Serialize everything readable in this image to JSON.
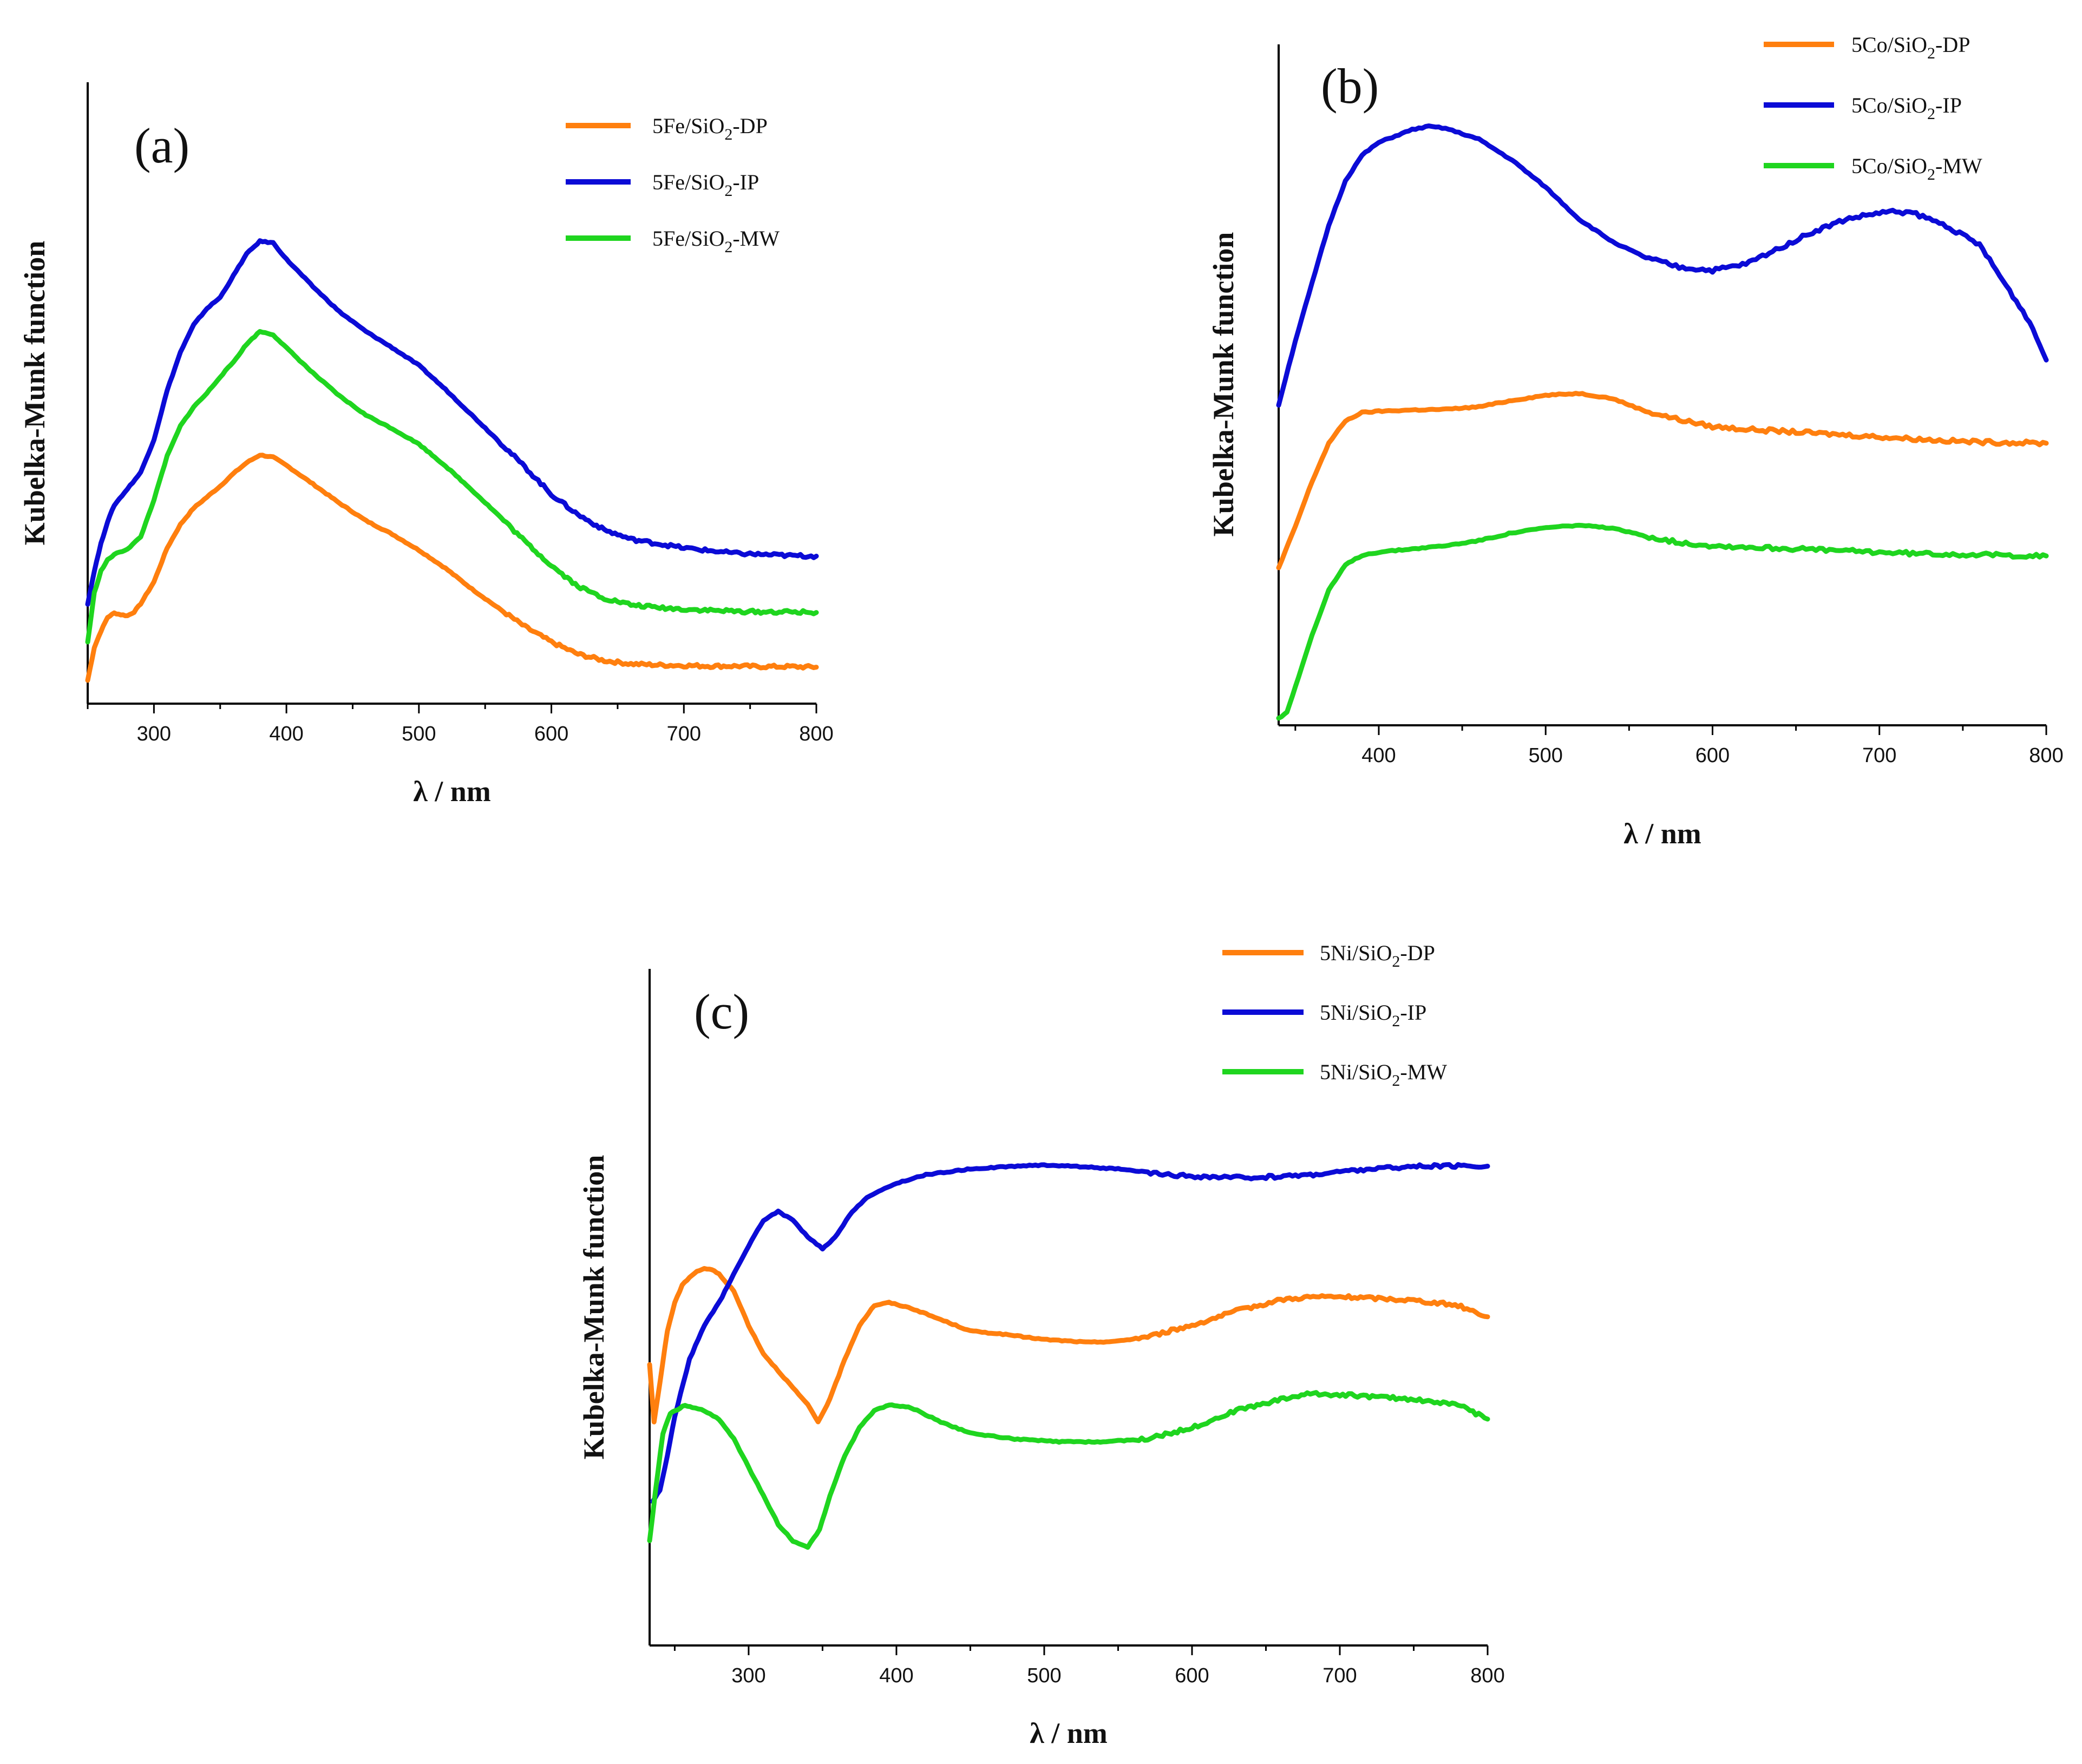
{
  "colors": {
    "DP": "#ff7f0e",
    "IP": "#0b0bd6",
    "MW": "#1fd51f"
  },
  "chart_data": [
    {
      "id": "a",
      "type": "line",
      "panel_label": "(a)",
      "title": "",
      "xlabel": "λ / nm",
      "ylabel": "Kubelka-Munk function",
      "xlim": [
        250,
        800
      ],
      "ylim": [
        0,
        1
      ],
      "xticks": [
        300,
        400,
        500,
        600,
        700,
        800
      ],
      "legend_position": "top-right",
      "series": [
        {
          "key": "DP",
          "name_base": "5Fe/SiO",
          "name_sub": "2",
          "name_suffix": "-DP",
          "x": [
            250,
            255,
            260,
            265,
            270,
            275,
            280,
            285,
            290,
            300,
            310,
            320,
            330,
            340,
            350,
            360,
            370,
            380,
            390,
            400,
            420,
            440,
            460,
            480,
            500,
            520,
            540,
            560,
            580,
            600,
            620,
            640,
            660,
            680,
            700,
            720,
            740,
            760,
            780,
            800
          ],
          "y": [
            0.02,
            0.08,
            0.11,
            0.135,
            0.143,
            0.14,
            0.138,
            0.145,
            0.16,
            0.2,
            0.262,
            0.305,
            0.335,
            0.355,
            0.375,
            0.398,
            0.418,
            0.432,
            0.428,
            0.413,
            0.379,
            0.344,
            0.312,
            0.287,
            0.258,
            0.225,
            0.187,
            0.152,
            0.118,
            0.09,
            0.068,
            0.056,
            0.05,
            0.048,
            0.047,
            0.046,
            0.046,
            0.045,
            0.045,
            0.044
          ]
        },
        {
          "key": "IP",
          "name_base": "5Fe/SiO",
          "name_sub": "2",
          "name_suffix": "-IP",
          "x": [
            250,
            255,
            260,
            265,
            270,
            280,
            290,
            300,
            310,
            320,
            330,
            340,
            350,
            360,
            370,
            380,
            390,
            400,
            420,
            440,
            460,
            480,
            500,
            520,
            540,
            560,
            580,
            600,
            620,
            640,
            660,
            680,
            700,
            720,
            740,
            760,
            780,
            800
          ],
          "y": [
            0.16,
            0.22,
            0.27,
            0.31,
            0.34,
            0.37,
            0.4,
            0.46,
            0.55,
            0.62,
            0.67,
            0.7,
            0.72,
            0.76,
            0.8,
            0.823,
            0.82,
            0.79,
            0.74,
            0.694,
            0.658,
            0.628,
            0.596,
            0.552,
            0.505,
            0.458,
            0.41,
            0.36,
            0.323,
            0.295,
            0.278,
            0.27,
            0.262,
            0.257,
            0.252,
            0.25,
            0.248,
            0.247
          ]
        },
        {
          "key": "MW",
          "name_base": "5Fe/SiO",
          "name_sub": "2",
          "name_suffix": "-MW",
          "x": [
            250,
            255,
            260,
            265,
            270,
            280,
            290,
            300,
            310,
            320,
            330,
            340,
            350,
            360,
            370,
            380,
            390,
            400,
            420,
            440,
            460,
            480,
            500,
            520,
            540,
            560,
            580,
            600,
            620,
            640,
            660,
            680,
            700,
            720,
            740,
            760,
            780,
            800
          ],
          "y": [
            0.09,
            0.18,
            0.22,
            0.24,
            0.25,
            0.26,
            0.282,
            0.35,
            0.43,
            0.485,
            0.52,
            0.545,
            0.575,
            0.602,
            0.635,
            0.658,
            0.652,
            0.628,
            0.582,
            0.54,
            0.505,
            0.48,
            0.452,
            0.412,
            0.368,
            0.322,
            0.274,
            0.23,
            0.192,
            0.17,
            0.158,
            0.153,
            0.15,
            0.148,
            0.146,
            0.145,
            0.145,
            0.144
          ]
        }
      ]
    },
    {
      "id": "b",
      "type": "line",
      "panel_label": "(b)",
      "title": "",
      "xlabel": "λ / nm",
      "ylabel": "Kubelka-Munk function",
      "xlim": [
        340,
        800
      ],
      "ylim": [
        0,
        1
      ],
      "xticks": [
        400,
        500,
        600,
        700,
        800
      ],
      "legend_position": "top-right",
      "series": [
        {
          "key": "DP",
          "name_base": "5Co/SiO",
          "name_sub": "2",
          "name_suffix": "-DP",
          "x": [
            340,
            350,
            360,
            370,
            380,
            390,
            400,
            420,
            440,
            460,
            480,
            500,
            520,
            540,
            560,
            580,
            600,
            620,
            640,
            660,
            680,
            700,
            720,
            740,
            760,
            780,
            800
          ],
          "y": [
            0.235,
            0.3,
            0.37,
            0.43,
            0.465,
            0.478,
            0.48,
            0.482,
            0.483,
            0.487,
            0.497,
            0.505,
            0.508,
            0.5,
            0.48,
            0.467,
            0.456,
            0.452,
            0.449,
            0.446,
            0.443,
            0.44,
            0.437,
            0.434,
            0.432,
            0.431,
            0.43
          ]
        },
        {
          "key": "IP",
          "name_base": "5Co/SiO",
          "name_sub": "2",
          "name_suffix": "-IP",
          "x": [
            340,
            350,
            360,
            370,
            380,
            390,
            400,
            410,
            420,
            430,
            440,
            460,
            480,
            500,
            520,
            540,
            560,
            580,
            600,
            620,
            640,
            660,
            680,
            700,
            710,
            720,
            740,
            760,
            780,
            790,
            800
          ],
          "y": [
            0.49,
            0.59,
            0.68,
            0.77,
            0.84,
            0.88,
            0.9,
            0.91,
            0.92,
            0.925,
            0.922,
            0.905,
            0.872,
            0.83,
            0.78,
            0.745,
            0.72,
            0.705,
            0.7,
            0.71,
            0.735,
            0.76,
            0.78,
            0.79,
            0.792,
            0.79,
            0.77,
            0.74,
            0.66,
            0.62,
            0.56
          ]
        },
        {
          "key": "MW",
          "name_base": "5Co/SiO",
          "name_sub": "2",
          "name_suffix": "-MW",
          "x": [
            340,
            345,
            350,
            360,
            370,
            380,
            390,
            400,
            420,
            440,
            460,
            480,
            500,
            520,
            540,
            560,
            580,
            600,
            620,
            640,
            660,
            680,
            700,
            720,
            740,
            760,
            780,
            800
          ],
          "y": [
            0.0,
            0.01,
            0.05,
            0.13,
            0.2,
            0.24,
            0.255,
            0.26,
            0.265,
            0.27,
            0.278,
            0.29,
            0.298,
            0.302,
            0.297,
            0.285,
            0.275,
            0.27,
            0.268,
            0.266,
            0.264,
            0.262,
            0.26,
            0.258,
            0.257,
            0.256,
            0.255,
            0.254
          ]
        }
      ]
    },
    {
      "id": "c",
      "type": "line",
      "panel_label": "(c)",
      "title": "",
      "xlabel": "λ / nm",
      "ylabel": "Kubelka-Munk function",
      "xlim": [
        233,
        800
      ],
      "ylim": [
        0,
        1
      ],
      "xticks": [
        300,
        400,
        500,
        600,
        700,
        800
      ],
      "legend_position": "top-right",
      "series": [
        {
          "key": "DP",
          "name_base": "5Ni/SiO",
          "name_sub": "2",
          "name_suffix": "-DP",
          "x": [
            233,
            236,
            240,
            245,
            250,
            255,
            260,
            265,
            270,
            275,
            280,
            290,
            300,
            310,
            320,
            330,
            340,
            347,
            355,
            365,
            375,
            385,
            395,
            410,
            430,
            450,
            470,
            500,
            530,
            550,
            570,
            600,
            630,
            660,
            680,
            700,
            720,
            750,
            780,
            800
          ],
          "y": [
            0.41,
            0.31,
            0.38,
            0.47,
            0.52,
            0.55,
            0.565,
            0.575,
            0.58,
            0.578,
            0.57,
            0.54,
            0.48,
            0.43,
            0.4,
            0.37,
            0.34,
            0.31,
            0.35,
            0.42,
            0.48,
            0.515,
            0.52,
            0.51,
            0.49,
            0.47,
            0.465,
            0.455,
            0.45,
            0.452,
            0.46,
            0.48,
            0.505,
            0.525,
            0.53,
            0.53,
            0.528,
            0.524,
            0.515,
            0.495
          ]
        },
        {
          "key": "IP",
          "name_base": "5Ni/SiO",
          "name_sub": "2",
          "name_suffix": "-IP",
          "x": [
            235,
            240,
            245,
            250,
            260,
            270,
            280,
            290,
            300,
            310,
            320,
            330,
            340,
            350,
            355,
            360,
            370,
            380,
            400,
            420,
            450,
            480,
            500,
            520,
            550,
            580,
            600,
            620,
            640,
            660,
            680,
            700,
            720,
            740,
            760,
            780,
            800
          ],
          "y": [
            0.17,
            0.19,
            0.25,
            0.32,
            0.42,
            0.48,
            0.52,
            0.57,
            0.62,
            0.665,
            0.68,
            0.665,
            0.635,
            0.615,
            0.625,
            0.64,
            0.68,
            0.705,
            0.73,
            0.745,
            0.755,
            0.76,
            0.762,
            0.76,
            0.755,
            0.745,
            0.742,
            0.74,
            0.74,
            0.742,
            0.745,
            0.75,
            0.755,
            0.758,
            0.76,
            0.76,
            0.76
          ]
        },
        {
          "key": "MW",
          "name_base": "5Ni/SiO",
          "name_sub": "2",
          "name_suffix": "-MW",
          "x": [
            233,
            237,
            242,
            247,
            252,
            257,
            262,
            270,
            280,
            290,
            300,
            310,
            320,
            330,
            340,
            348,
            355,
            365,
            375,
            385,
            395,
            410,
            430,
            450,
            480,
            510,
            540,
            570,
            600,
            630,
            660,
            680,
            700,
            720,
            750,
            780,
            800
          ],
          "y": [
            0.1,
            0.19,
            0.29,
            0.325,
            0.332,
            0.34,
            0.335,
            0.33,
            0.315,
            0.28,
            0.23,
            0.18,
            0.13,
            0.1,
            0.09,
            0.12,
            0.18,
            0.25,
            0.3,
            0.33,
            0.34,
            0.335,
            0.31,
            0.29,
            0.28,
            0.275,
            0.275,
            0.28,
            0.3,
            0.33,
            0.35,
            0.36,
            0.358,
            0.355,
            0.35,
            0.34,
            0.315
          ]
        }
      ]
    }
  ]
}
